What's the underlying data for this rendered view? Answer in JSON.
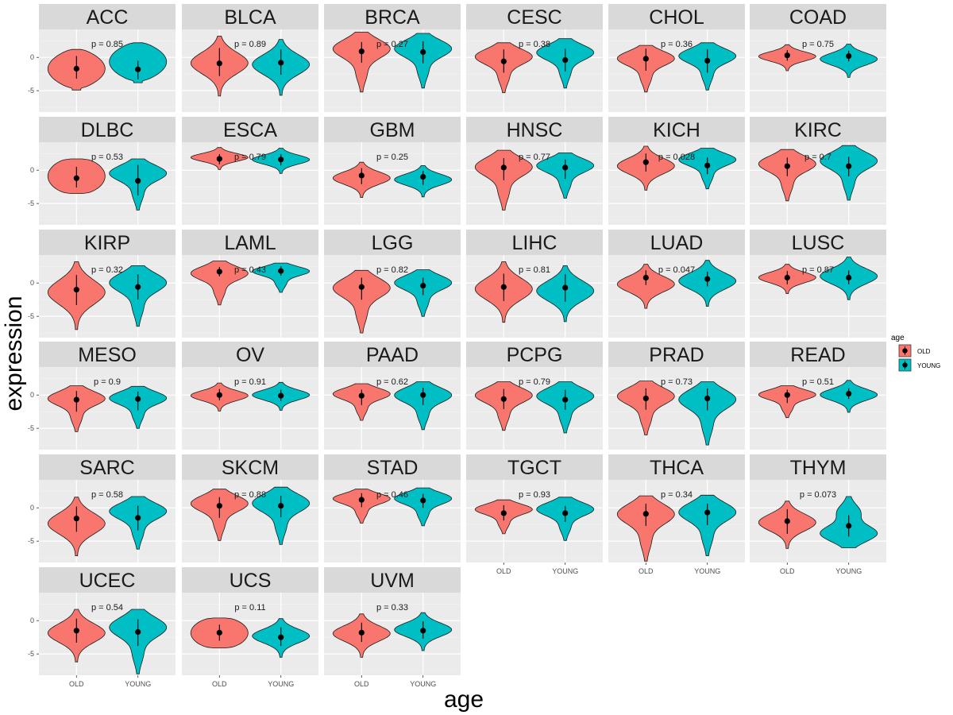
{
  "chart_data": {
    "type": "violin",
    "xlabel": "age",
    "ylabel": "expression",
    "categories": [
      "OLD",
      "YOUNG"
    ],
    "y_ticks": [
      0,
      -5
    ],
    "ylim": [
      -8.2,
      4.2
    ],
    "legend": {
      "title": "age",
      "position": "right",
      "items": [
        {
          "label": "OLD",
          "color": "#F8766D"
        },
        {
          "label": "YOUNG",
          "color": "#00BFC4"
        }
      ]
    },
    "facets": [
      {
        "name": "ACC",
        "p_label": "p = 0.85",
        "old": {
          "median": -1.7,
          "low": -4.9,
          "high": 1.2,
          "q1": -3.2,
          "q3": 0.2,
          "shape": "blob"
        },
        "young": {
          "median": -1.8,
          "low": -3.8,
          "high": 2.2,
          "q1": -3.3,
          "q3": -0.5,
          "shape": "blob"
        }
      },
      {
        "name": "BLCA",
        "p_label": "p = 0.89",
        "old": {
          "median": -0.9,
          "low": -5.8,
          "high": 3.2,
          "q1": -2.8,
          "q3": 1.4,
          "shape": "normal"
        },
        "young": {
          "median": -0.8,
          "low": -5.7,
          "high": 2.7,
          "q1": -2.6,
          "q3": 1.2,
          "shape": "normal"
        }
      },
      {
        "name": "BRCA",
        "p_label": "p = 0.27",
        "old": {
          "median": 0.9,
          "low": -5.2,
          "high": 3.8,
          "q1": -0.8,
          "q3": 2.3,
          "shape": "top"
        },
        "young": {
          "median": 0.8,
          "low": -4.6,
          "high": 3.6,
          "q1": -0.9,
          "q3": 2.4,
          "shape": "top"
        }
      },
      {
        "name": "CESC",
        "p_label": "p = 0.38",
        "old": {
          "median": -0.6,
          "low": -5.3,
          "high": 2.2,
          "q1": -2.3,
          "q3": 1.2,
          "shape": "top"
        },
        "young": {
          "median": -0.4,
          "low": -4.6,
          "high": 2.8,
          "q1": -2.1,
          "q3": 1.3,
          "shape": "top"
        }
      },
      {
        "name": "CHOL",
        "p_label": "p = 0.36",
        "old": {
          "median": -0.2,
          "low": -5.2,
          "high": 1.8,
          "q1": -2.0,
          "q3": 1.3,
          "shape": "top"
        },
        "young": {
          "median": -0.5,
          "low": -4.9,
          "high": 2.2,
          "q1": -2.3,
          "q3": 1.2,
          "shape": "top"
        }
      },
      {
        "name": "COAD",
        "p_label": "p = 0.75",
        "old": {
          "median": 0.3,
          "low": -2.0,
          "high": 1.9,
          "q1": -0.5,
          "q3": 1.1,
          "shape": "normal"
        },
        "young": {
          "median": 0.2,
          "low": -3.0,
          "high": 2.0,
          "q1": -0.6,
          "q3": 1.0,
          "shape": "normal"
        }
      },
      {
        "name": "DLBC",
        "p_label": "p = 0.53",
        "old": {
          "median": -1.2,
          "low": -3.5,
          "high": 1.7,
          "q1": -2.6,
          "q3": 0.5,
          "shape": "flat"
        },
        "young": {
          "median": -1.6,
          "low": -6.0,
          "high": 1.7,
          "q1": -3.8,
          "q3": 0.8,
          "shape": "top"
        }
      },
      {
        "name": "ESCA",
        "p_label": "p = 0.79",
        "old": {
          "median": 1.7,
          "low": 0.1,
          "high": 3.4,
          "q1": 0.9,
          "q3": 2.4,
          "shape": "normal"
        },
        "young": {
          "median": 1.6,
          "low": -0.5,
          "high": 3.3,
          "q1": 0.7,
          "q3": 2.4,
          "shape": "normal"
        }
      },
      {
        "name": "GBM",
        "p_label": "p = 0.25",
        "old": {
          "median": -0.8,
          "low": -4.1,
          "high": 1.2,
          "q1": -2.1,
          "q3": 0.3,
          "shape": "normal"
        },
        "young": {
          "median": -1.0,
          "low": -4.0,
          "high": 0.7,
          "q1": -2.2,
          "q3": -0.1,
          "shape": "normal"
        }
      },
      {
        "name": "HNSC",
        "p_label": "p = 0.77",
        "old": {
          "median": 0.4,
          "low": -6.0,
          "high": 3.0,
          "q1": -1.5,
          "q3": 1.8,
          "shape": "top"
        },
        "young": {
          "median": 0.4,
          "low": -4.2,
          "high": 2.6,
          "q1": -1.3,
          "q3": 1.6,
          "shape": "top"
        }
      },
      {
        "name": "KICH",
        "p_label": "p = 0.028",
        "old": {
          "median": 1.2,
          "low": -3.0,
          "high": 3.6,
          "q1": -0.2,
          "q3": 2.5,
          "shape": "normal"
        },
        "young": {
          "median": 0.7,
          "low": -2.8,
          "high": 3.3,
          "q1": -0.6,
          "q3": 1.9,
          "shape": "top"
        }
      },
      {
        "name": "KIRC",
        "p_label": "p = 0.7",
        "old": {
          "median": 0.6,
          "low": -4.6,
          "high": 3.1,
          "q1": -0.9,
          "q3": 1.9,
          "shape": "top"
        },
        "young": {
          "median": 0.6,
          "low": -4.5,
          "high": 3.7,
          "q1": -0.9,
          "q3": 2.0,
          "shape": "top"
        }
      },
      {
        "name": "KIRP",
        "p_label": "p = 0.32",
        "old": {
          "median": -1.0,
          "low": -7.0,
          "high": 3.2,
          "q1": -3.3,
          "q3": 1.2,
          "shape": "normal"
        },
        "young": {
          "median": -0.6,
          "low": -6.5,
          "high": 2.6,
          "q1": -2.5,
          "q3": 1.3,
          "shape": "top"
        }
      },
      {
        "name": "LAML",
        "p_label": "p = 0.43",
        "old": {
          "median": 1.7,
          "low": -3.3,
          "high": 3.3,
          "q1": 1.0,
          "q3": 2.4,
          "shape": "top"
        },
        "young": {
          "median": 1.8,
          "low": -1.4,
          "high": 3.0,
          "q1": 1.1,
          "q3": 2.5,
          "shape": "top"
        }
      },
      {
        "name": "LGG",
        "p_label": "p = 0.82",
        "old": {
          "median": -0.6,
          "low": -7.5,
          "high": 1.9,
          "q1": -2.5,
          "q3": 0.8,
          "shape": "top"
        },
        "young": {
          "median": -0.4,
          "low": -5.0,
          "high": 2.0,
          "q1": -1.8,
          "q3": 0.8,
          "shape": "top"
        }
      },
      {
        "name": "LIHC",
        "p_label": "p = 0.81",
        "old": {
          "median": -0.6,
          "low": -5.9,
          "high": 3.2,
          "q1": -2.7,
          "q3": 1.4,
          "shape": "normal"
        },
        "young": {
          "median": -0.7,
          "low": -5.8,
          "high": 2.6,
          "q1": -2.8,
          "q3": 1.3,
          "shape": "normal"
        }
      },
      {
        "name": "LUAD",
        "p_label": "p = 0.047",
        "old": {
          "median": 0.8,
          "low": -3.8,
          "high": 2.8,
          "q1": -0.3,
          "q3": 1.9,
          "shape": "normal"
        },
        "young": {
          "median": 0.6,
          "low": -3.5,
          "high": 3.4,
          "q1": -0.5,
          "q3": 1.7,
          "shape": "normal"
        }
      },
      {
        "name": "LUSC",
        "p_label": "p = 0.87",
        "old": {
          "median": 0.8,
          "low": -1.6,
          "high": 2.8,
          "q1": -0.2,
          "q3": 1.8,
          "shape": "normal"
        },
        "young": {
          "median": 0.8,
          "low": -2.5,
          "high": 3.9,
          "q1": -0.2,
          "q3": 1.9,
          "shape": "normal"
        }
      },
      {
        "name": "MESO",
        "p_label": "p = 0.9",
        "old": {
          "median": -0.7,
          "low": -5.5,
          "high": 1.4,
          "q1": -2.5,
          "q3": 0.6,
          "shape": "top"
        },
        "young": {
          "median": -0.6,
          "low": -5.0,
          "high": 1.3,
          "q1": -2.3,
          "q3": 0.5,
          "shape": "top"
        }
      },
      {
        "name": "OV",
        "p_label": "p = 0.91",
        "old": {
          "median": 0.0,
          "low": -2.4,
          "high": 1.8,
          "q1": -0.8,
          "q3": 0.9,
          "shape": "normal"
        },
        "young": {
          "median": -0.1,
          "low": -2.3,
          "high": 1.9,
          "q1": -0.9,
          "q3": 0.8,
          "shape": "normal"
        }
      },
      {
        "name": "PAAD",
        "p_label": "p = 0.62",
        "old": {
          "median": -0.1,
          "low": -3.8,
          "high": 1.7,
          "q1": -1.5,
          "q3": 0.8,
          "shape": "top"
        },
        "young": {
          "median": 0.0,
          "low": -5.2,
          "high": 2.0,
          "q1": -1.5,
          "q3": 1.1,
          "shape": "top"
        }
      },
      {
        "name": "PCPG",
        "p_label": "p = 0.79",
        "old": {
          "median": -0.6,
          "low": -5.3,
          "high": 2.0,
          "q1": -2.1,
          "q3": 0.9,
          "shape": "top"
        },
        "young": {
          "median": -0.7,
          "low": -5.7,
          "high": 2.0,
          "q1": -2.2,
          "q3": 0.8,
          "shape": "top"
        }
      },
      {
        "name": "PRAD",
        "p_label": "p = 0.73",
        "old": {
          "median": -0.5,
          "low": -6.0,
          "high": 2.1,
          "q1": -2.2,
          "q3": 1.0,
          "shape": "top"
        },
        "young": {
          "median": -0.5,
          "low": -7.5,
          "high": 2.0,
          "q1": -2.3,
          "q3": 1.0,
          "shape": "top"
        }
      },
      {
        "name": "READ",
        "p_label": "p = 0.51",
        "old": {
          "median": 0.0,
          "low": -3.4,
          "high": 1.4,
          "q1": -1.2,
          "q3": 0.8,
          "shape": "top"
        },
        "young": {
          "median": 0.2,
          "low": -2.6,
          "high": 2.2,
          "q1": -0.6,
          "q3": 1.0,
          "shape": "normal"
        }
      },
      {
        "name": "SARC",
        "p_label": "p = 0.58",
        "old": {
          "median": -1.6,
          "low": -7.2,
          "high": 1.6,
          "q1": -3.6,
          "q3": 0.2,
          "shape": "normal"
        },
        "young": {
          "median": -1.5,
          "low": -6.2,
          "high": 1.7,
          "q1": -3.4,
          "q3": 0.3,
          "shape": "top"
        }
      },
      {
        "name": "SKCM",
        "p_label": "p = 0.88",
        "old": {
          "median": 0.3,
          "low": -4.9,
          "high": 2.8,
          "q1": -1.5,
          "q3": 1.6,
          "shape": "top"
        },
        "young": {
          "median": 0.3,
          "low": -5.5,
          "high": 3.1,
          "q1": -1.4,
          "q3": 1.8,
          "shape": "top"
        }
      },
      {
        "name": "STAD",
        "p_label": "p = 0.46",
        "old": {
          "median": 1.2,
          "low": -2.3,
          "high": 2.8,
          "q1": 0.1,
          "q3": 2.2,
          "shape": "top"
        },
        "young": {
          "median": 1.1,
          "low": -2.7,
          "high": 3.0,
          "q1": 0.0,
          "q3": 2.1,
          "shape": "top"
        }
      },
      {
        "name": "TGCT",
        "p_label": "p = 0.93",
        "old": {
          "median": -0.8,
          "low": -3.9,
          "high": 1.2,
          "q1": -1.9,
          "q3": 0.4,
          "shape": "top"
        },
        "young": {
          "median": -0.8,
          "low": -4.9,
          "high": 1.6,
          "q1": -2.1,
          "q3": 0.3,
          "shape": "top"
        }
      },
      {
        "name": "THCA",
        "p_label": "p = 0.34",
        "old": {
          "median": -0.9,
          "low": -8.0,
          "high": 1.8,
          "q1": -2.7,
          "q3": 0.6,
          "shape": "top"
        },
        "young": {
          "median": -0.7,
          "low": -7.2,
          "high": 1.9,
          "q1": -2.6,
          "q3": 0.6,
          "shape": "top"
        }
      },
      {
        "name": "THYM",
        "p_label": "p = 0.073",
        "old": {
          "median": -2.0,
          "low": -6.1,
          "high": 1.0,
          "q1": -3.9,
          "q3": -0.2,
          "shape": "normal"
        },
        "young": {
          "median": -2.7,
          "low": -6.0,
          "high": 1.7,
          "q1": -4.3,
          "q3": -1.1,
          "shape": "bottom"
        }
      },
      {
        "name": "UCEC",
        "p_label": "p = 0.54",
        "old": {
          "median": -1.5,
          "low": -6.2,
          "high": 1.7,
          "q1": -3.3,
          "q3": 0.3,
          "shape": "normal"
        },
        "young": {
          "median": -1.7,
          "low": -8.0,
          "high": 1.7,
          "q1": -3.8,
          "q3": 0.2,
          "shape": "top"
        }
      },
      {
        "name": "UCS",
        "p_label": "p = 0.11",
        "old": {
          "median": -1.8,
          "low": -4.1,
          "high": 0.4,
          "q1": -3.0,
          "q3": -0.6,
          "shape": "flat"
        },
        "young": {
          "median": -2.5,
          "low": -5.5,
          "high": 0.3,
          "q1": -3.8,
          "q3": -1.0,
          "shape": "normal"
        }
      },
      {
        "name": "UVM",
        "p_label": "p = 0.33",
        "old": {
          "median": -1.8,
          "low": -5.5,
          "high": 1.0,
          "q1": -3.2,
          "q3": -0.3,
          "shape": "normal"
        },
        "young": {
          "median": -1.5,
          "low": -4.5,
          "high": 1.2,
          "q1": -2.7,
          "q3": -0.1,
          "shape": "normal"
        }
      }
    ]
  }
}
